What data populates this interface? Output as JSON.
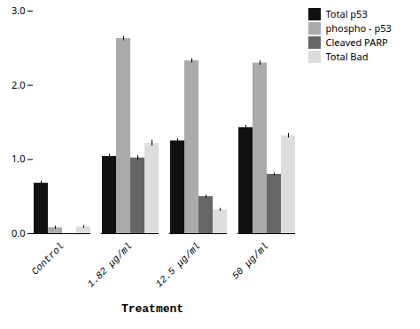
{
  "chart_data": {
    "type": "bar",
    "categories": [
      "Control",
      "1.82 μg/ml",
      "12.5 μg/ml",
      "50 μg/ml"
    ],
    "series": [
      {
        "name": "Total p53",
        "color": "#111111",
        "values": [
          0.68,
          1.04,
          1.25,
          1.43
        ],
        "errors": [
          0.03,
          0.03,
          0.03,
          0.03
        ]
      },
      {
        "name": "phospho - p53",
        "color": "#aaaaaa",
        "values": [
          0.08,
          2.63,
          2.33,
          2.3
        ],
        "errors": [
          0.02,
          0.03,
          0.03,
          0.03
        ]
      },
      {
        "name": "Cleaved PARP",
        "color": "#666666",
        "values": [
          0.0,
          1.02,
          0.5,
          0.8
        ],
        "errors": [
          0.0,
          0.03,
          0.02,
          0.02
        ]
      },
      {
        "name": "Total Bad",
        "color": "#dddddd",
        "values": [
          0.09,
          1.22,
          0.32,
          1.32
        ],
        "errors": [
          0.02,
          0.04,
          0.02,
          0.03
        ]
      }
    ],
    "xlabel": "Treatment",
    "ylim": [
      0,
      3.0
    ],
    "yticks": [
      0,
      1,
      2,
      3
    ],
    "grid": false,
    "legend": "right"
  }
}
